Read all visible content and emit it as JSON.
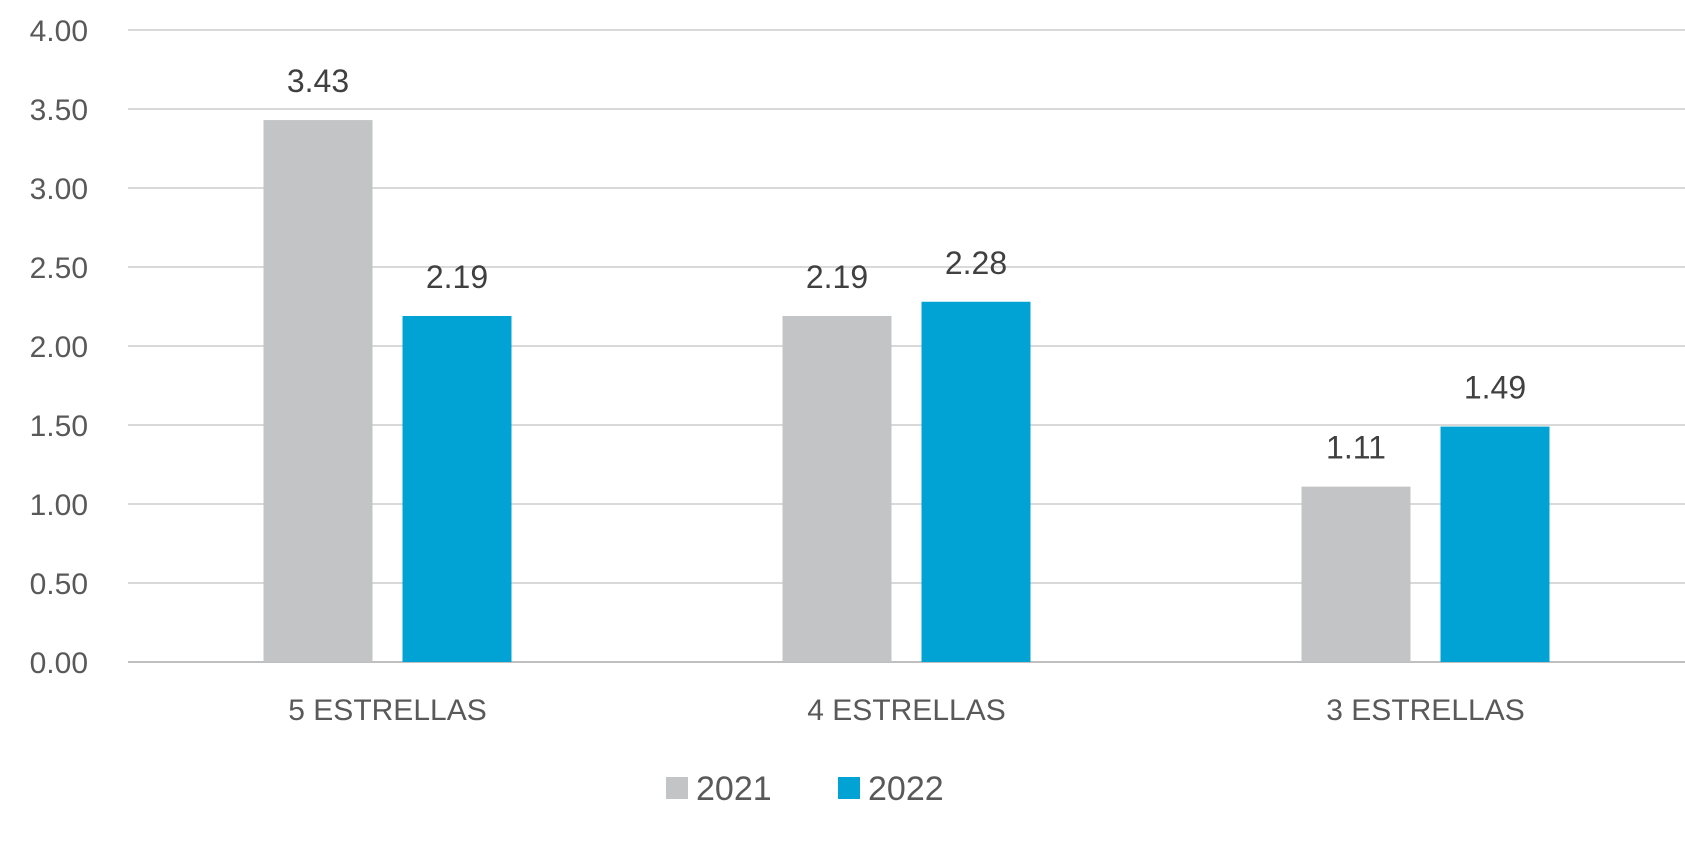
{
  "chart_data": {
    "type": "bar",
    "categories": [
      "5 ESTRELLAS",
      "4 ESTRELLAS",
      "3 ESTRELLAS"
    ],
    "series": [
      {
        "name": "2021",
        "color": "#c3c4c6",
        "values": [
          3.43,
          2.19,
          1.11
        ]
      },
      {
        "name": "2022",
        "color": "#00a3d4",
        "values": [
          2.19,
          2.28,
          1.49
        ]
      }
    ],
    "ylim": [
      0,
      4
    ],
    "yticks": [
      "0.00",
      "0.50",
      "1.00",
      "1.50",
      "2.00",
      "2.50",
      "3.00",
      "3.50",
      "4.00"
    ],
    "grid": true,
    "legend_position": "bottom",
    "data_labels": true
  }
}
